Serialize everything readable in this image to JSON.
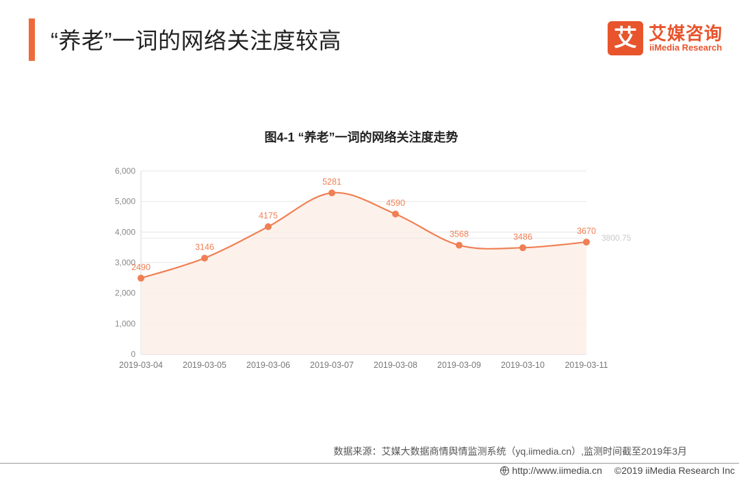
{
  "header": {
    "title": "“养老”一词的网络关注度较高"
  },
  "logo": {
    "mark": "艾",
    "name_cn": "艾媒咨询",
    "name_en": "iiMedia Research"
  },
  "colors": {
    "accent": "#ee6a3d",
    "line": "#ef7f54",
    "fill": "#fdeee7",
    "grid": "#e6e6e6",
    "avg": "#e9e9e9"
  },
  "chart_data": {
    "type": "area",
    "title": "图4-1 “养老”一词的网络关注度走势",
    "xlabel": "",
    "ylabel": "",
    "categories": [
      "2019-03-04",
      "2019-03-05",
      "2019-03-06",
      "2019-03-07",
      "2019-03-08",
      "2019-03-09",
      "2019-03-10",
      "2019-03-11"
    ],
    "series": [
      {
        "name": "",
        "values": [
          2490,
          3146,
          4175,
          5281,
          4590,
          3568,
          3486,
          3670
        ]
      }
    ],
    "ylim": [
      0,
      6000
    ],
    "yticks": [
      0,
      1000,
      2000,
      3000,
      4000,
      5000,
      6000
    ],
    "ytick_labels": [
      "0",
      "1,000",
      "2,000",
      "3,000",
      "4,000",
      "5,000",
      "6,000"
    ],
    "average_line": {
      "value": 3800.75,
      "label": "3800.75"
    },
    "grid": true,
    "smooth": true
  },
  "source": {
    "text": "数据来源：艾媒大数据商情舆情监测系统（yq.iimedia.cn）,监测时间截至2019年3月"
  },
  "footer": {
    "url": "http://www.iimedia.cn",
    "copyright": "©2019  iiMedia Research  Inc"
  }
}
